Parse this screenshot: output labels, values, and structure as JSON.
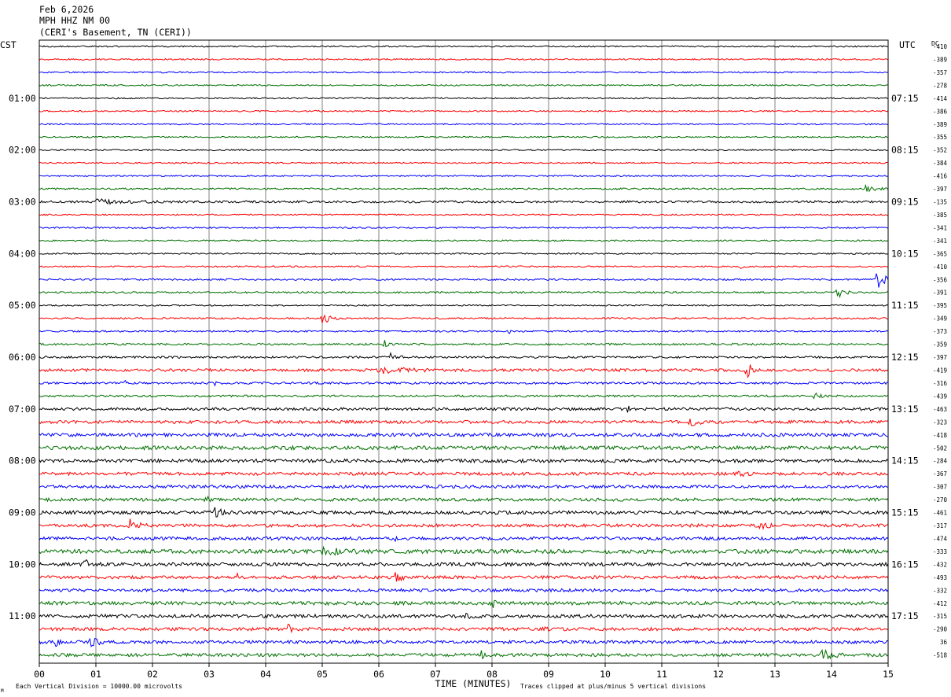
{
  "header": {
    "date": "Feb 6,2026",
    "station": "MPH HHZ NM 00",
    "location": "(CERI's Basement, TN (CERI))"
  },
  "left_timezone": "CST",
  "right_timezone": "UTC",
  "dc_label": "DC",
  "footer": {
    "vertical_division": "Each Vertical Division = 10000.00 microvolts",
    "clip_note": "Traces clipped at plus/minus 5 vertical divisions",
    "corner_mark": "M"
  },
  "colors": {
    "trace_cycle": [
      "#000000",
      "#ff0000",
      "#0000ff",
      "#007000"
    ],
    "grid": "#808080",
    "frame": "#000000"
  },
  "chart_data": {
    "type": "line",
    "xlabel": "TIME (MINUTES)",
    "x_ticks": [
      "00",
      "01",
      "02",
      "03",
      "04",
      "05",
      "06",
      "07",
      "08",
      "09",
      "10",
      "11",
      "12",
      "13",
      "14",
      "15"
    ],
    "xlim": [
      0,
      15
    ],
    "rows_per_hour": 4,
    "row_minutes": 15,
    "left_hour_labels": [
      "01:00",
      "02:00",
      "03:00",
      "04:00",
      "05:00",
      "06:00",
      "07:00",
      "08:00",
      "09:00",
      "10:00",
      "11:00"
    ],
    "right_hour_labels": [
      "07:15",
      "08:15",
      "09:15",
      "10:15",
      "11:15",
      "12:15",
      "13:15",
      "14:15",
      "15:15",
      "16:15",
      "17:15"
    ],
    "dc_offsets": [
      "-410",
      "-389",
      "-357",
      "-278",
      "-414",
      "-386",
      "-389",
      "-355",
      "-352",
      "-384",
      "-416",
      "-397",
      "-135",
      "-385",
      "-341",
      "-341",
      "-365",
      "-410",
      "-356",
      "-391",
      "-395",
      "-349",
      "-373",
      "-359",
      "-397",
      "-419",
      "-316",
      "-439",
      "-463",
      "-323",
      "-418",
      "-502",
      "-284",
      "-367",
      "-307",
      "-270",
      "-461",
      "-317",
      "-474",
      "-333",
      "-432",
      "-493",
      "-332",
      "-412",
      "-315",
      "-290",
      "36",
      "-518"
    ],
    "row_noise": [
      0.9,
      0.9,
      0.9,
      0.9,
      0.9,
      0.9,
      0.9,
      0.9,
      0.9,
      0.9,
      0.9,
      1.1,
      1.4,
      0.9,
      0.9,
      0.9,
      0.9,
      0.9,
      1.1,
      1.1,
      0.9,
      1.0,
      1.0,
      1.2,
      1.3,
      1.8,
      1.4,
      1.3,
      1.8,
      2.0,
      2.2,
      2.4,
      2.2,
      2.0,
      1.9,
      2.0,
      2.2,
      2.0,
      2.0,
      2.6,
      2.2,
      2.0,
      1.9,
      2.2,
      2.2,
      2.0,
      2.0,
      2.0
    ],
    "events": [
      {
        "row": 11,
        "minute": 14.6,
        "amp": 4,
        "dur": 0.5
      },
      {
        "row": 12,
        "minute": 1.0,
        "amp": 3,
        "dur": 1.4
      },
      {
        "row": 17,
        "minute": 12.4,
        "amp": 4,
        "dur": 0.1
      },
      {
        "row": 18,
        "minute": 14.8,
        "amp": 18,
        "dur": 0.3
      },
      {
        "row": 19,
        "minute": 14.1,
        "amp": 8,
        "dur": 0.3
      },
      {
        "row": 21,
        "minute": 5.0,
        "amp": 9,
        "dur": 0.3
      },
      {
        "row": 22,
        "minute": 8.3,
        "amp": 3,
        "dur": 0.1
      },
      {
        "row": 23,
        "minute": 6.1,
        "amp": 5,
        "dur": 0.2
      },
      {
        "row": 24,
        "minute": 6.2,
        "amp": 6,
        "dur": 0.3
      },
      {
        "row": 25,
        "minute": 12.5,
        "amp": 10,
        "dur": 0.3
      },
      {
        "row": 25,
        "minute": 6.0,
        "amp": 4,
        "dur": 1.2
      },
      {
        "row": 26,
        "minute": 1.5,
        "amp": 4,
        "dur": 0.1
      },
      {
        "row": 26,
        "minute": 3.1,
        "amp": 4,
        "dur": 0.1
      },
      {
        "row": 27,
        "minute": 13.7,
        "amp": 4,
        "dur": 0.3
      },
      {
        "row": 28,
        "minute": 10.4,
        "amp": 4,
        "dur": 0.1
      },
      {
        "row": 29,
        "minute": 11.5,
        "amp": 7,
        "dur": 0.3
      },
      {
        "row": 33,
        "minute": 12.3,
        "amp": 6,
        "dur": 0.3
      },
      {
        "row": 35,
        "minute": 2.9,
        "amp": 6,
        "dur": 0.2
      },
      {
        "row": 36,
        "minute": 3.1,
        "amp": 6,
        "dur": 0.3
      },
      {
        "row": 37,
        "minute": 1.6,
        "amp": 12,
        "dur": 0.3
      },
      {
        "row": 37,
        "minute": 12.7,
        "amp": 7,
        "dur": 0.3
      },
      {
        "row": 38,
        "minute": 6.3,
        "amp": 4,
        "dur": 0.1
      },
      {
        "row": 39,
        "minute": 5.0,
        "amp": 5,
        "dur": 0.8
      },
      {
        "row": 40,
        "minute": 0.8,
        "amp": 6,
        "dur": 0.3
      },
      {
        "row": 41,
        "minute": 6.3,
        "amp": 9,
        "dur": 0.2
      },
      {
        "row": 41,
        "minute": 3.5,
        "amp": 4,
        "dur": 0.2
      },
      {
        "row": 43,
        "minute": 8.0,
        "amp": 5,
        "dur": 0.3
      },
      {
        "row": 44,
        "minute": 7.5,
        "amp": 5,
        "dur": 0.3
      },
      {
        "row": 45,
        "minute": 4.4,
        "amp": 5,
        "dur": 0.2
      },
      {
        "row": 45,
        "minute": 8.9,
        "amp": 4,
        "dur": 0.2
      },
      {
        "row": 46,
        "minute": 0.9,
        "amp": 7,
        "dur": 0.3
      },
      {
        "row": 46,
        "minute": 0.3,
        "amp": 5,
        "dur": 0.2
      },
      {
        "row": 47,
        "minute": 13.8,
        "amp": 9,
        "dur": 0.4
      },
      {
        "row": 47,
        "minute": 7.8,
        "amp": 5,
        "dur": 0.2
      }
    ]
  }
}
